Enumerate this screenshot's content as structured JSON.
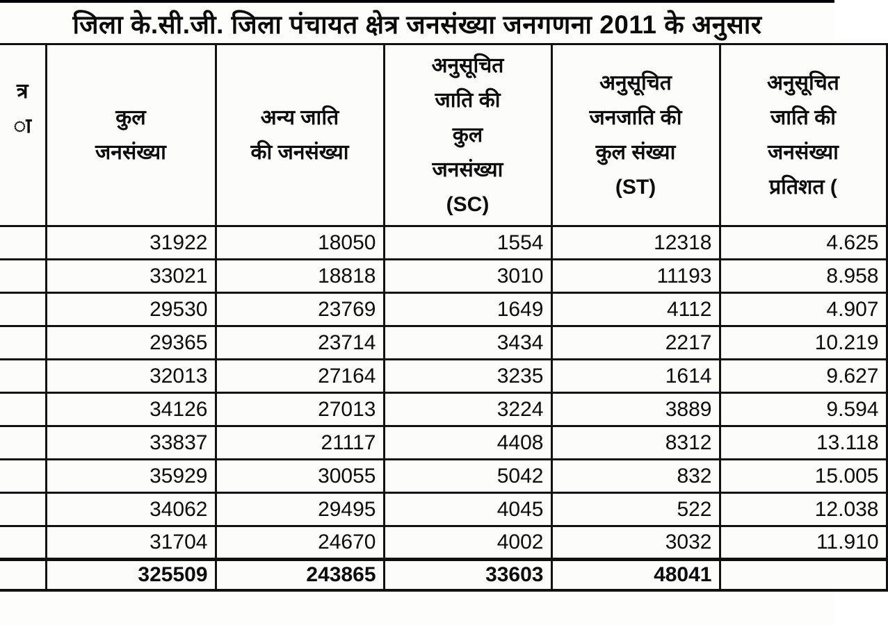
{
  "title": "जिला के.सी.जी. जिला पंचायत क्षेत्र जनसंख्या जनगणना 2011 के अनुसार",
  "colors": {
    "border": "#111111",
    "background": "#fdfdfc",
    "text": "#0c0c0c",
    "top_rule": "#000000"
  },
  "table": {
    "columns": [
      {
        "id": "area",
        "header_lines": [
          "त्र",
          "ा"
        ]
      },
      {
        "id": "total-pop",
        "header_lines": [
          "कुल",
          "जनसंख्या"
        ]
      },
      {
        "id": "other-pop",
        "header_lines": [
          "अन्य जाति",
          "की जनसंख्या"
        ]
      },
      {
        "id": "sc-pop",
        "header_lines": [
          "अनुसूचित",
          "जाति की",
          "कुल",
          "जनसंख्या",
          "(SC)"
        ]
      },
      {
        "id": "st-pop",
        "header_lines": [
          "अनुसूचित",
          "जनजाति की",
          "कुल संख्या",
          "(ST)"
        ]
      },
      {
        "id": "sc-percent",
        "header_lines": [
          "अनुसूचित",
          "जाति की",
          "जनसंख्या",
          "प्रतिशत ("
        ]
      }
    ],
    "rows": [
      [
        "",
        "31922",
        "18050",
        "1554",
        "12318",
        "4.625"
      ],
      [
        "",
        "33021",
        "18818",
        "3010",
        "11193",
        "8.958"
      ],
      [
        "",
        "29530",
        "23769",
        "1649",
        "4112",
        "4.907"
      ],
      [
        "",
        "29365",
        "23714",
        "3434",
        "2217",
        "10.219"
      ],
      [
        "",
        "32013",
        "27164",
        "3235",
        "1614",
        "9.627"
      ],
      [
        "",
        "34126",
        "27013",
        "3224",
        "3889",
        "9.594"
      ],
      [
        "",
        "33837",
        "21117",
        "4408",
        "8312",
        "13.118"
      ],
      [
        "",
        "35929",
        "30055",
        "5042",
        "832",
        "15.005"
      ],
      [
        "",
        "34062",
        "29495",
        "4045",
        "522",
        "12.038"
      ],
      [
        "",
        "31704",
        "24670",
        "4002",
        "3032",
        "11.910"
      ]
    ],
    "total_row": [
      "",
      "325509",
      "243865",
      "33603",
      "48041",
      ""
    ]
  }
}
